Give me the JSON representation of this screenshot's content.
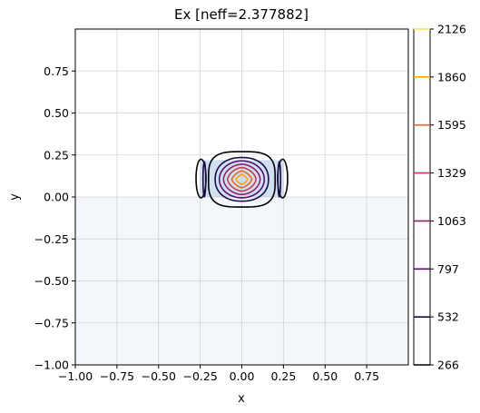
{
  "chart_data": {
    "type": "contour",
    "title": "Ex [neff=2.377882]",
    "xlabel": "x",
    "ylabel": "y",
    "xlim": [
      -1.0,
      1.0
    ],
    "ylim": [
      -1.0,
      1.0
    ],
    "xticks": [
      -1.0,
      -0.75,
      -0.5,
      -0.25,
      0.0,
      0.25,
      0.5,
      0.75
    ],
    "xtick_labels": [
      "−1.00",
      "−0.75",
      "−0.50",
      "−0.25",
      "0.00",
      "0.25",
      "0.50",
      "0.75"
    ],
    "yticks": [
      -1.0,
      -0.75,
      -0.5,
      -0.25,
      0.0,
      0.25,
      0.5,
      0.75
    ],
    "ytick_labels": [
      "−1.00",
      "−0.75",
      "−0.50",
      "−0.25",
      "0.00",
      "0.25",
      "0.50",
      "0.75"
    ],
    "grid": true,
    "regions": [
      {
        "kind": "substrate",
        "x": [
          -1.0,
          1.0
        ],
        "y": [
          -1.0,
          0.0
        ],
        "color": "#f3f6fb"
      },
      {
        "kind": "core",
        "x": [
          -0.25,
          0.25
        ],
        "y": [
          0.0,
          0.22
        ],
        "color": "#d0e0f2"
      }
    ],
    "contours": [
      {
        "level": 266,
        "color": "#000000",
        "rings": [
          [
            0.0,
            0.105,
            0.2,
            0.165,
            0.6
          ]
        ],
        "side_lobes": [
          [
            -0.245,
            0.11,
            0.03,
            0.115
          ],
          [
            0.245,
            0.11,
            0.03,
            0.115
          ]
        ]
      },
      {
        "level": 532,
        "color": "#1a0c44",
        "rings": [
          [
            0.0,
            0.105,
            0.16,
            0.13,
            0.9
          ]
        ],
        "side_lobes": [
          [
            -0.225,
            0.105,
            0.008,
            0.105
          ],
          [
            0.225,
            0.105,
            0.008,
            0.105
          ]
        ]
      },
      {
        "level": 797,
        "color": "#560f6e",
        "rings": [
          [
            0.0,
            0.105,
            0.135,
            0.11,
            1.0
          ]
        ]
      },
      {
        "level": 1063,
        "color": "#8c2369",
        "rings": [
          [
            0.0,
            0.105,
            0.11,
            0.09,
            1.1
          ]
        ]
      },
      {
        "level": 1329,
        "color": "#c43c4e",
        "rings": [
          [
            0.0,
            0.105,
            0.085,
            0.07,
            1.2
          ]
        ]
      },
      {
        "level": 1595,
        "color": "#ea632a",
        "rings": [
          [
            0.0,
            0.105,
            0.06,
            0.05,
            1.4
          ]
        ]
      },
      {
        "level": 1860,
        "color": "#faa30a",
        "rings": [
          [
            0.0,
            0.105,
            0.035,
            0.03,
            1.6
          ]
        ]
      }
    ],
    "colorbar": {
      "ticks": [
        "266",
        "532",
        "797",
        "1063",
        "1329",
        "1595",
        "1860",
        "2126"
      ],
      "colors": [
        "#000000",
        "#1a0c44",
        "#560f6e",
        "#8c2369",
        "#c43c4e",
        "#ea632a",
        "#faa30a",
        "#f3e55d"
      ]
    }
  }
}
